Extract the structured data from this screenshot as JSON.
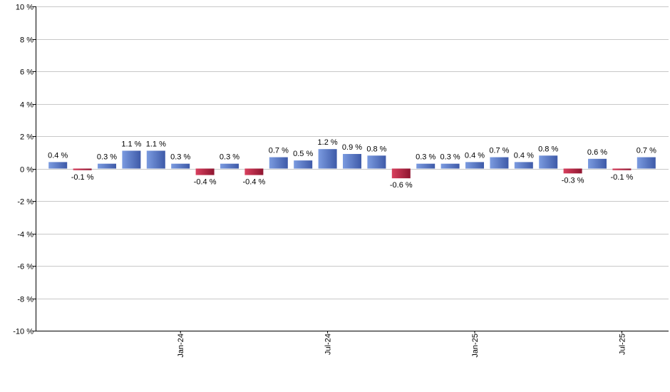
{
  "chart_data": {
    "type": "bar",
    "title": "",
    "xlabel": "",
    "ylabel": "",
    "ylim": [
      -10,
      10
    ],
    "ytick_step": 2,
    "ytick_suffix": " %",
    "grid": true,
    "legend": "none",
    "values": [
      0.4,
      -0.1,
      0.3,
      1.1,
      1.1,
      0.3,
      -0.4,
      0.3,
      -0.4,
      0.7,
      0.5,
      1.2,
      0.9,
      0.8,
      -0.6,
      0.3,
      0.3,
      0.4,
      0.7,
      0.4,
      0.8,
      -0.3,
      0.6,
      -0.1,
      0.7
    ],
    "labels": [
      "0.4 %",
      "-0.1 %",
      "0.3 %",
      "1.1 %",
      "1.1 %",
      "0.3 %",
      "-0.4 %",
      "0.3 %",
      "-0.4 %",
      "0.7 %",
      "0.5 %",
      "1.2 %",
      "0.9 %",
      "0.8 %",
      "-0.6 %",
      "0.3 %",
      "0.3 %",
      "0.4 %",
      "0.7 %",
      "0.4 %",
      "0.8 %",
      "-0.3 %",
      "0.6 %",
      "-0.1 %",
      "0.7 %"
    ],
    "x_tick_labels": [
      {
        "index": 5,
        "label": "Jan-24"
      },
      {
        "index": 11,
        "label": "Jul-24"
      },
      {
        "index": 17,
        "label": "Jan-25"
      },
      {
        "index": 23,
        "label": "Jul-25"
      }
    ],
    "colors": {
      "positive": "#7b9be0",
      "positive_dark": "#3e5aa8",
      "negative": "#d8405e",
      "negative_dark": "#8e1530"
    }
  }
}
